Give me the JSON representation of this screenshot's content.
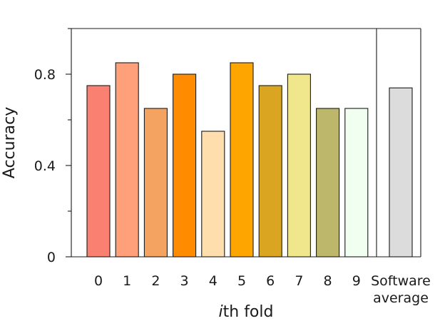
{
  "chart_data": {
    "type": "bar",
    "title": "",
    "xlabel_prefix": "i",
    "xlabel_suffix": "th fold",
    "ylabel": "Accuracy",
    "ylim": [
      0,
      1
    ],
    "yticks": [
      0,
      0.4,
      0.8
    ],
    "ytick_labels": [
      "0",
      "0.4",
      "0.8"
    ],
    "yminor_ticks": [
      0.2,
      0.6,
      1.0
    ],
    "grid": false,
    "categories": [
      "0",
      "1",
      "2",
      "3",
      "4",
      "5",
      "6",
      "7",
      "8",
      "9"
    ],
    "values": [
      0.75,
      0.85,
      0.65,
      0.8,
      0.55,
      0.85,
      0.75,
      0.8,
      0.65,
      0.65
    ],
    "colors": [
      "#fa8072",
      "#ffa07a",
      "#f4a460",
      "#ff8c00",
      "#ffdead",
      "#ffa500",
      "#daa520",
      "#f0e68c",
      "#bdb76b",
      "#f0fff0"
    ],
    "summary_bar": {
      "label_lines": [
        "Software",
        "average"
      ],
      "value": 0.74,
      "color": "#dcdcdc"
    }
  }
}
